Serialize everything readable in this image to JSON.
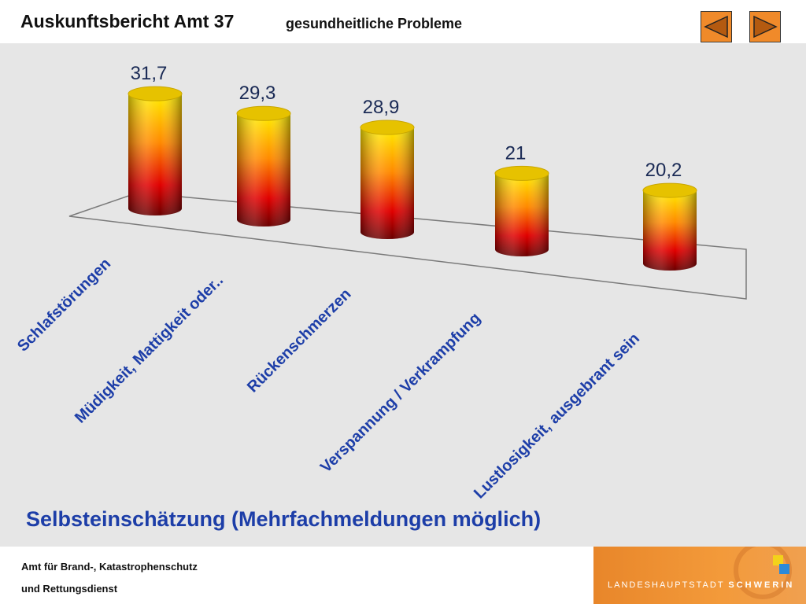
{
  "header": {
    "title": "Auskunftsbericht Amt 37",
    "subtitle": "gesundheitliche Probleme",
    "nav": {
      "prev_icon": "triangle-left-icon",
      "next_icon": "triangle-right-icon"
    }
  },
  "chart_data": {
    "type": "bar",
    "style": "3d-cylinder",
    "categories": [
      "Schlafstörungen",
      "Müdigkeit, Mattigkeit oder..",
      "Rückenschmerzen",
      "Verspannung / Verkrampfung",
      "Lustlosigkeit, ausgebrant sein"
    ],
    "values": [
      31.7,
      29.3,
      28.9,
      21,
      20.2
    ],
    "value_labels": [
      "31,7",
      "29,3",
      "28,9",
      "21",
      "20,2"
    ],
    "grid": false,
    "colors": {
      "top": "#e6c200",
      "gradient": [
        "#ffee00",
        "#ff8000",
        "#e00000",
        "#600000"
      ],
      "label": "#1d3ea8"
    }
  },
  "caption": "Selbsteinschätzung (Mehrfachmeldungen möglich)",
  "footer": {
    "line1": "Amt für Brand-, Katastrophenschutz",
    "line2": "und  Rettungsdienst",
    "logo_prefix": "LANDESHAUPTSTADT",
    "logo_name": "SCHWERIN"
  }
}
